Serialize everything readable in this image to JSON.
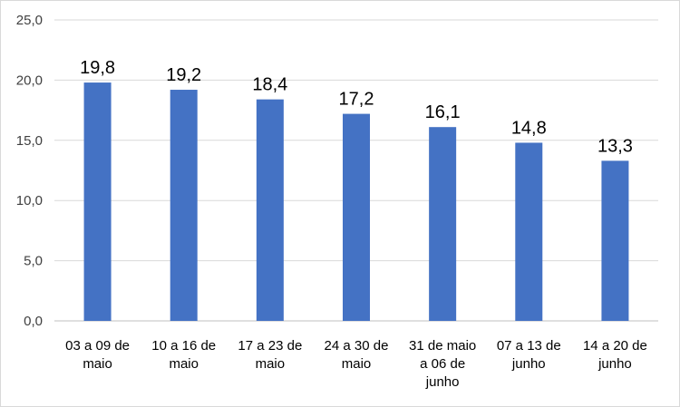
{
  "chart_data": {
    "type": "bar",
    "categories": [
      [
        "03 a 09 de",
        "maio"
      ],
      [
        "10 a 16 de",
        "maio"
      ],
      [
        "17 a 23 de",
        "maio"
      ],
      [
        "24 a 30 de",
        "maio"
      ],
      [
        "31 de maio",
        "a 06 de",
        "junho"
      ],
      [
        "07  a 13 de",
        "junho"
      ],
      [
        "14 a 20 de",
        "junho"
      ]
    ],
    "values": [
      19.8,
      19.2,
      18.4,
      17.2,
      16.1,
      14.8,
      13.3
    ],
    "data_labels": [
      "19,8",
      "19,2",
      "18,4",
      "17,2",
      "16,1",
      "14,8",
      "13,3"
    ],
    "y_ticks": [
      0,
      5,
      10,
      15,
      20,
      25
    ],
    "y_tick_labels": [
      "0,0",
      "5,0",
      "10,0",
      "15,0",
      "20,0",
      "25,0"
    ],
    "ylim": [
      0,
      25
    ],
    "grid": true,
    "legend": "none",
    "title": "",
    "xlabel": "",
    "ylabel": "",
    "colors": {
      "bar": "#4472C4",
      "grid": "#d9d9d9",
      "axis": "#bfbfbf"
    }
  }
}
